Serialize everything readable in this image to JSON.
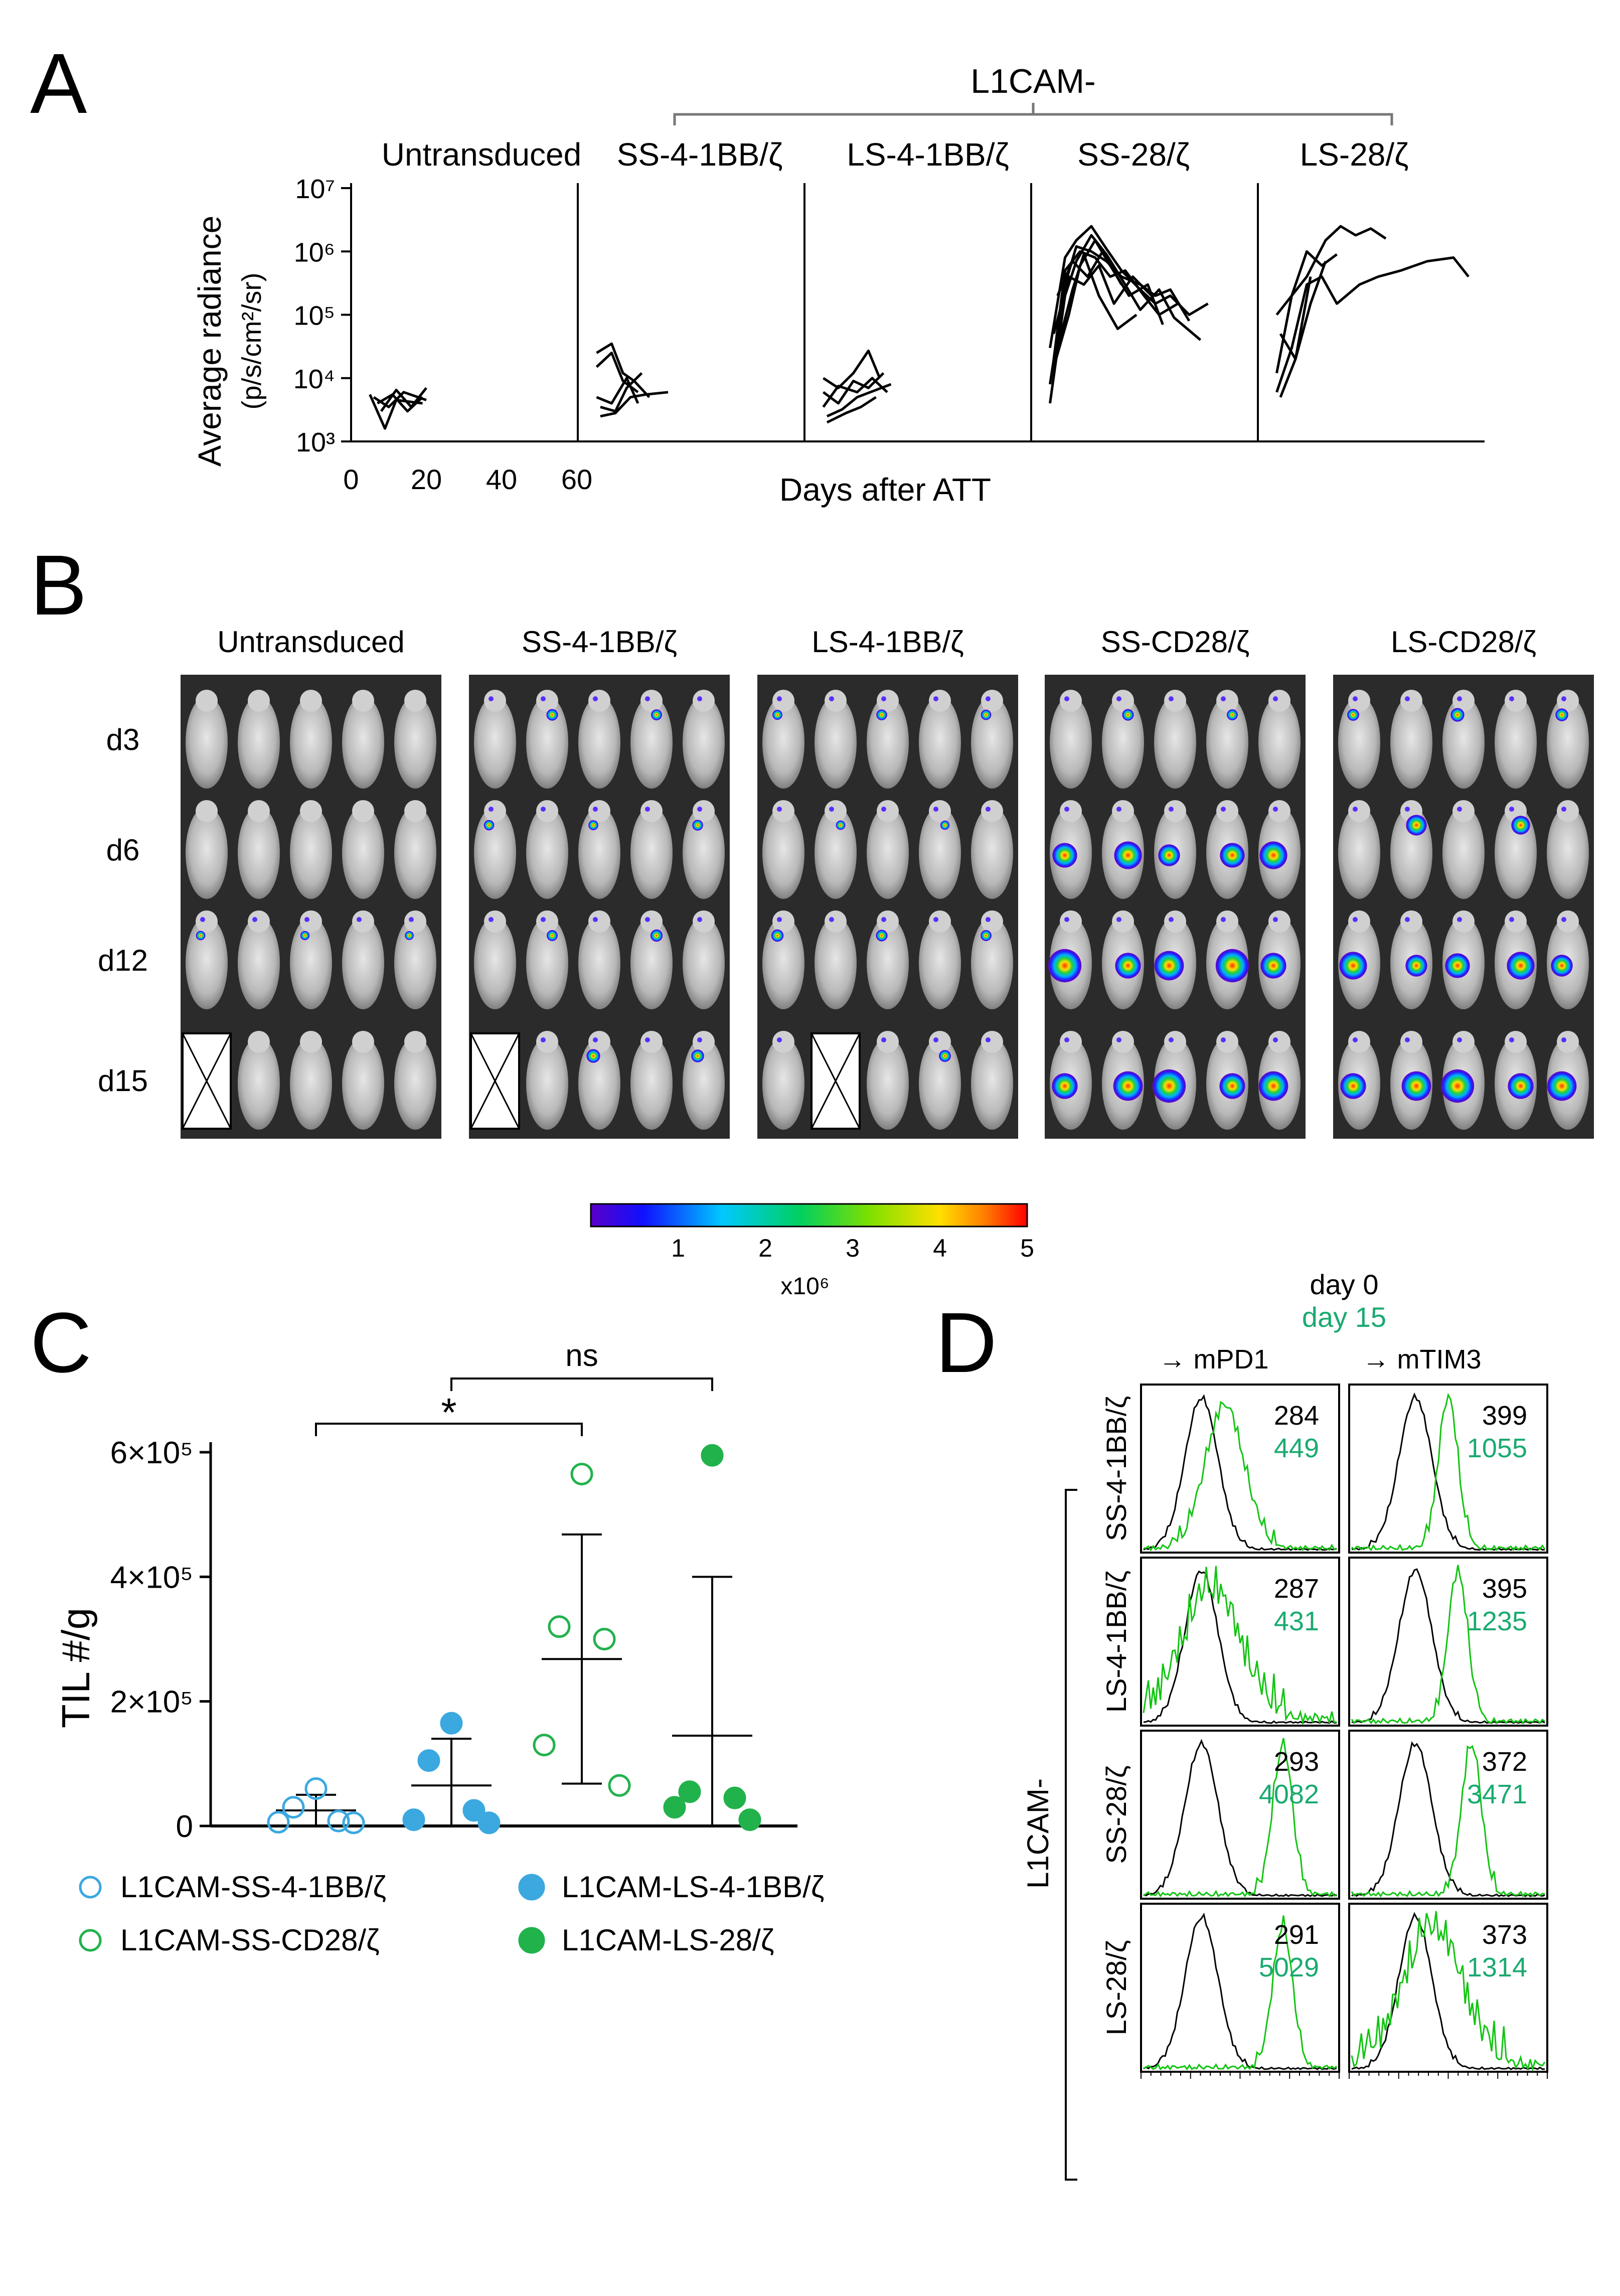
{
  "panel_letters": {
    "a": "A",
    "b": "B",
    "c": "C",
    "d": "D"
  },
  "colors": {
    "black": "#000000",
    "green_trace": "#11c411",
    "green_text": "#1aaa70",
    "blue_point": "#3ba8e0",
    "green_point": "#22b24c",
    "imaging_bg": "#2b2b2b"
  },
  "panel_a": {
    "group_bracket_label": "L1CAM-",
    "y_axis_label_line1": "Average radiance",
    "y_axis_label_line2": "(p/s/cm²/sr)",
    "x_axis_label": "Days after ATT",
    "y_tick_labels": [
      "10³",
      "10⁴",
      "10⁵",
      "10⁶",
      "10⁷"
    ],
    "x_tick_labels": [
      "0",
      "20",
      "40",
      "60"
    ],
    "groups": [
      "Untransduced",
      "SS-4-1BB/ζ",
      "LS-4-1BB/ζ",
      "SS-28/ζ",
      "LS-28/ζ"
    ]
  },
  "chart_data": [
    {
      "type": "line",
      "title": "Panel A",
      "xlabel": "Days after ATT",
      "ylabel": "Average radiance (p/s/cm²/sr)",
      "y_scale": "log10",
      "ylim": [
        1000,
        10000000
      ],
      "xlim": [
        0,
        60
      ],
      "subplots": [
        {
          "name": "Untransduced",
          "series": [
            {
              "x": [
                3,
                7,
                10,
                17
              ],
              "y": [
                5500,
                1600,
                4500,
                4000
              ]
            },
            {
              "x": [
                4,
                8,
                12,
                18
              ],
              "y": [
                5000,
                3500,
                6000,
                4500
              ]
            },
            {
              "x": [
                5,
                9,
                13,
                17
              ],
              "y": [
                4000,
                5500,
                3000,
                5000
              ]
            },
            {
              "x": [
                6,
                10,
                14,
                18
              ],
              "y": [
                3000,
                6500,
                3500,
                7000
              ]
            }
          ]
        },
        {
          "name": "SS-4-1BB/ζ",
          "series": [
            {
              "x": [
                3,
                7,
                10,
                13,
                17
              ],
              "y": [
                25000,
                35000,
                12000,
                9000,
                5000
              ]
            },
            {
              "x": [
                3,
                7,
                10,
                14
              ],
              "y": [
                15000,
                25000,
                9000,
                6000
              ]
            },
            {
              "x": [
                3,
                7,
                11,
                14
              ],
              "y": [
                5000,
                4000,
                10000,
                4000
              ]
            },
            {
              "x": [
                4,
                8,
                11,
                15
              ],
              "y": [
                3500,
                3000,
                7000,
                12000
              ]
            },
            {
              "x": [
                4,
                8,
                12,
                16,
                22
              ],
              "y": [
                2500,
                2800,
                5000,
                5500,
                6000
              ]
            }
          ]
        },
        {
          "name": "LS-4-1BB/ζ",
          "series": [
            {
              "x": [
                3,
                7,
                11,
                15,
                18
              ],
              "y": [
                10000,
                7000,
                12000,
                27000,
                10000
              ]
            },
            {
              "x": [
                3,
                7,
                11,
                15,
                19
              ],
              "y": [
                6000,
                4000,
                9000,
                7000,
                12000
              ]
            },
            {
              "x": [
                3,
                7,
                12,
                16,
                20
              ],
              "y": [
                3500,
                7500,
                6000,
                10000,
                6000
              ]
            },
            {
              "x": [
                4,
                8,
                12,
                17,
                21
              ],
              "y": [
                2500,
                3200,
                5000,
                6500,
                8000
              ]
            },
            {
              "x": [
                4,
                9,
                13,
                17
              ],
              "y": [
                2000,
                2800,
                3500,
                5000
              ]
            }
          ]
        },
        {
          "name": "SS-28/ζ",
          "series": [
            {
              "x": [
                3,
                7,
                10,
                14,
                18,
                22,
                27,
                31,
                35,
                40,
                45
              ],
              "y": [
                30000,
                800000,
                1500000,
                2500000,
                1100000,
                500000,
                250000,
                150000,
                200000,
                100000,
                150000
              ]
            },
            {
              "x": [
                3,
                7,
                10,
                14,
                18,
                22,
                27,
                31,
                35,
                40
              ],
              "y": [
                8000,
                300000,
                1200000,
                1000000,
                700000,
                400000,
                300000,
                200000,
                250000,
                80000
              ]
            },
            {
              "x": [
                3,
                7,
                10,
                14,
                18,
                23,
                27,
                32,
                36,
                43
              ],
              "y": [
                4000,
                200000,
                700000,
                1800000,
                900000,
                300000,
                120000,
                250000,
                90000,
                40000
              ]
            },
            {
              "x": [
                4,
                7,
                11,
                15,
                19,
                23,
                28,
                32,
                37
              ],
              "y": [
                20000,
                500000,
                1000000,
                800000,
                400000,
                500000,
                200000,
                100000,
                150000
              ]
            },
            {
              "x": [
                4,
                8,
                11,
                15,
                19,
                24,
                29,
                33
              ],
              "y": [
                15000,
                100000,
                600000,
                1500000,
                600000,
                200000,
                300000,
                70000
              ]
            },
            {
              "x": [
                4,
                8,
                12,
                16,
                20,
                25,
                30
              ],
              "y": [
                50000,
                400000,
                300000,
                600000,
                150000,
                400000,
                200000
              ]
            },
            {
              "x": [
                5,
                9,
                12,
                16,
                21,
                26
              ],
              "y": [
                30000,
                250000,
                900000,
                200000,
                60000,
                100000
              ]
            },
            {
              "x": [
                5,
                9,
                13,
                17,
                22
              ],
              "y": [
                200000,
                700000,
                400000,
                1000000,
                300000
              ]
            }
          ]
        },
        {
          "name": "LS-28/ζ",
          "series": [
            {
              "x": [
                3,
                7,
                11,
                16,
                20,
                24,
                28,
                32
              ],
              "y": [
                100000,
                200000,
                400000,
                1500000,
                2500000,
                1800000,
                2300000,
                1600000
              ]
            },
            {
              "x": [
                3,
                7,
                11,
                15,
                19,
                25,
                30,
                36,
                43,
                50,
                54
              ],
              "y": [
                6000,
                30000,
                300000,
                400000,
                150000,
                300000,
                400000,
                500000,
                700000,
                800000,
                400000
              ]
            },
            {
              "x": [
                3,
                7,
                11,
                15,
                19
              ],
              "y": [
                12000,
                200000,
                1000000,
                600000,
                900000
              ]
            },
            {
              "x": [
                4,
                8,
                12,
                16
              ],
              "y": [
                5000,
                20000,
                150000,
                700000
              ]
            },
            {
              "x": [
                4,
                8,
                12
              ],
              "y": [
                50000,
                20000,
                400000
              ]
            }
          ]
        }
      ]
    },
    {
      "type": "scatter",
      "title": "Panel C",
      "ylabel": "TIL #/g",
      "ylim": [
        0,
        600000
      ],
      "y_tick_labels": [
        "0",
        "2×10⁵",
        "4×10⁵",
        "6×10⁵"
      ],
      "series": [
        {
          "name": "L1CAM-SS-4-1BB/ζ",
          "values": [
            60000,
            30000,
            8000,
            6000,
            5000
          ],
          "mean": 25000,
          "sd": 25000
        },
        {
          "name": "L1CAM-LS-4-1BB/ζ",
          "values": [
            165000,
            105000,
            25000,
            10000,
            5000
          ],
          "mean": 65000,
          "sd": 75000
        },
        {
          "name": "L1CAM-SS-CD28/ζ",
          "values": [
            565000,
            320000,
            300000,
            130000,
            65000
          ],
          "mean": 268000,
          "sd": 200000
        },
        {
          "name": "L1CAM-LS-28/ζ",
          "values": [
            595000,
            55000,
            45000,
            30000,
            10000
          ],
          "mean": 145000,
          "sd": 255000
        }
      ],
      "significance": [
        {
          "groups": [
            "L1CAM-SS-4-1BB/ζ",
            "L1CAM-SS-CD28/ζ"
          ],
          "label": "*"
        },
        {
          "groups": [
            "L1CAM-LS-4-1BB/ζ",
            "L1CAM-LS-28/ζ"
          ],
          "label": "ns"
        }
      ]
    }
  ],
  "panel_b": {
    "groups": [
      "Untransduced",
      "SS-4-1BB/ζ",
      "LS-4-1BB/ζ",
      "SS-CD28/ζ",
      "LS-CD28/ζ"
    ],
    "days": [
      "d3",
      "d6",
      "d12",
      "d15"
    ],
    "colorbar_ticks": [
      "1",
      "2",
      "3",
      "4",
      "5"
    ],
    "colorbar_unit": "x10⁶"
  },
  "panel_c": {
    "y_axis_label": "TIL #/g",
    "y_tick_labels": [
      "0",
      "2×10⁵",
      "4×10⁵",
      "6×10⁵"
    ],
    "significance_star": "*",
    "significance_ns": "ns",
    "legend": [
      "L1CAM-SS-4-1BB/ζ",
      "L1CAM-LS-4-1BB/ζ",
      "L1CAM-SS-CD28/ζ",
      "L1CAM-LS-28/ζ"
    ]
  },
  "panel_d": {
    "legend_day0": "day 0",
    "legend_day15": "day 15",
    "col_headers": [
      "→ mPD1",
      "→ mTIM3"
    ],
    "side_label": "L1CAM-",
    "rows": [
      {
        "label": "SS-4-1BB/ζ",
        "mpd1": [
          "284",
          "449"
        ],
        "mtim3": [
          "399",
          "1055"
        ]
      },
      {
        "label": "LS-4-1BB/ζ",
        "mpd1": [
          "287",
          "431"
        ],
        "mtim3": [
          "395",
          "1235"
        ]
      },
      {
        "label": "SS-28/ζ",
        "mpd1": [
          "293",
          "4082"
        ],
        "mtim3": [
          "372",
          "3471"
        ]
      },
      {
        "label": "LS-28/ζ",
        "mpd1": [
          "291",
          "5029"
        ],
        "mtim3": [
          "373",
          "1314"
        ]
      }
    ]
  }
}
